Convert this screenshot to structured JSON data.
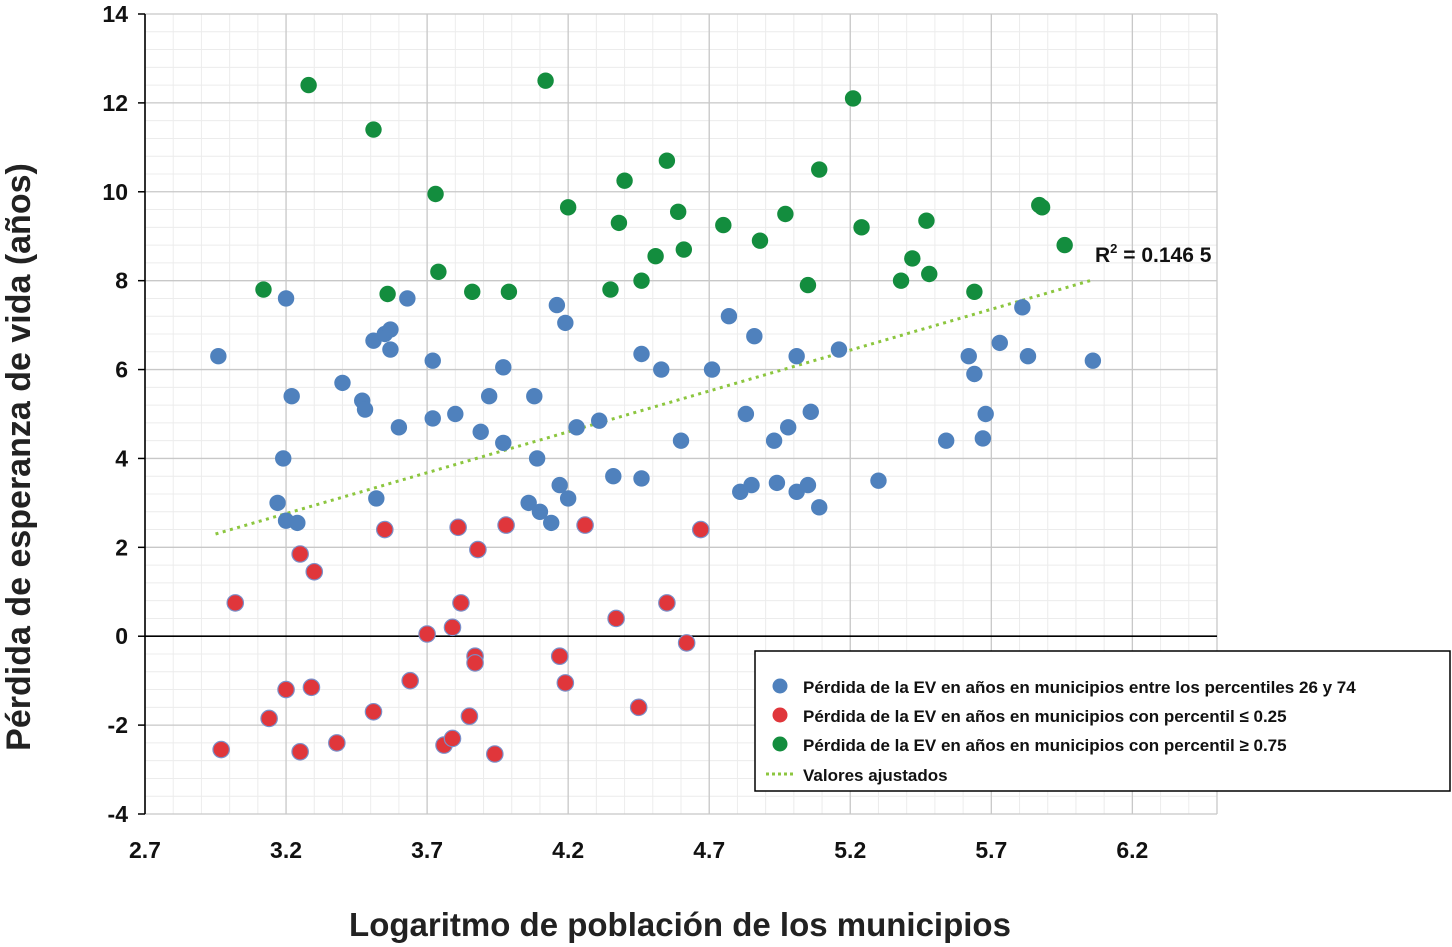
{
  "chart_data": {
    "type": "scatter",
    "title": "",
    "xlabel": "Logaritmo de población de los municipios",
    "ylabel": "Pérdida de esperanza de vida (años)",
    "xlim": [
      2.7,
      6.5
    ],
    "ylim": [
      -4,
      14
    ],
    "x_ticks": [
      "2.7",
      "3.2",
      "3.7",
      "4.2",
      "4.7",
      "5.2",
      "5.7",
      "6.2"
    ],
    "y_ticks": [
      "-4",
      "-2",
      "0",
      "2",
      "4",
      "6",
      "8",
      "10",
      "12",
      "14"
    ],
    "grid": true,
    "legend_position": "bottom-right",
    "r2_label": {
      "prefix": "R",
      "sup": "2",
      "suffix": " = 0.146 5"
    },
    "trendline": {
      "name": "Valores ajustados",
      "color": "#8cc63f",
      "x": [
        2.95,
        6.05
      ],
      "y": [
        2.3,
        8.0
      ]
    },
    "series": [
      {
        "name": "Pérdida de la EV en años en municipios entre los percentiles 26 y 74",
        "color": "#4f81bd",
        "points": [
          [
            2.96,
            6.3
          ],
          [
            3.17,
            3.0
          ],
          [
            3.19,
            4.0
          ],
          [
            3.2,
            7.6
          ],
          [
            3.22,
            5.4
          ],
          [
            3.2,
            2.6
          ],
          [
            3.24,
            2.55
          ],
          [
            3.4,
            5.7
          ],
          [
            3.47,
            5.3
          ],
          [
            3.48,
            5.1
          ],
          [
            3.51,
            6.65
          ],
          [
            3.55,
            6.8
          ],
          [
            3.57,
            6.9
          ],
          [
            3.57,
            6.45
          ],
          [
            3.52,
            3.1
          ],
          [
            3.6,
            4.7
          ],
          [
            3.63,
            7.6
          ],
          [
            3.72,
            6.2
          ],
          [
            3.72,
            4.9
          ],
          [
            3.8,
            5.0
          ],
          [
            3.89,
            4.6
          ],
          [
            3.92,
            5.4
          ],
          [
            3.97,
            6.05
          ],
          [
            3.97,
            4.35
          ],
          [
            4.06,
            3.0
          ],
          [
            4.08,
            5.4
          ],
          [
            4.1,
            2.8
          ],
          [
            4.09,
            4.0
          ],
          [
            4.14,
            2.55
          ],
          [
            4.17,
            3.4
          ],
          [
            4.16,
            7.45
          ],
          [
            4.19,
            7.05
          ],
          [
            4.2,
            3.1
          ],
          [
            4.23,
            4.7
          ],
          [
            4.31,
            4.85
          ],
          [
            4.36,
            3.6
          ],
          [
            4.46,
            6.35
          ],
          [
            4.46,
            3.55
          ],
          [
            4.53,
            6.0
          ],
          [
            4.6,
            4.4
          ],
          [
            4.71,
            6.0
          ],
          [
            4.77,
            7.2
          ],
          [
            4.81,
            3.25
          ],
          [
            4.83,
            5.0
          ],
          [
            4.85,
            3.4
          ],
          [
            4.86,
            6.75
          ],
          [
            4.93,
            4.4
          ],
          [
            4.94,
            3.45
          ],
          [
            4.98,
            4.7
          ],
          [
            5.01,
            6.3
          ],
          [
            5.01,
            3.25
          ],
          [
            5.05,
            3.4
          ],
          [
            5.06,
            5.05
          ],
          [
            5.09,
            2.9
          ],
          [
            5.16,
            6.45
          ],
          [
            5.3,
            3.5
          ],
          [
            5.54,
            4.4
          ],
          [
            5.62,
            6.3
          ],
          [
            5.64,
            5.9
          ],
          [
            5.67,
            4.45
          ],
          [
            5.68,
            5.0
          ],
          [
            5.73,
            6.6
          ],
          [
            5.81,
            7.4
          ],
          [
            5.83,
            6.3
          ],
          [
            6.06,
            6.2
          ]
        ]
      },
      {
        "name": "Pérdida de la EV en años en municipios con percentil ≤ 0.25",
        "color": "#e0363b",
        "points": [
          [
            2.97,
            -2.55
          ],
          [
            3.02,
            0.75
          ],
          [
            3.14,
            -1.85
          ],
          [
            3.2,
            -1.2
          ],
          [
            3.25,
            -2.6
          ],
          [
            3.25,
            1.85
          ],
          [
            3.29,
            -1.15
          ],
          [
            3.3,
            1.45
          ],
          [
            3.38,
            -2.4
          ],
          [
            3.51,
            -1.7
          ],
          [
            3.55,
            2.4
          ],
          [
            3.64,
            -1.0
          ],
          [
            3.7,
            0.05
          ],
          [
            3.76,
            -2.45
          ],
          [
            3.79,
            -2.3
          ],
          [
            3.79,
            0.2
          ],
          [
            3.82,
            0.75
          ],
          [
            3.81,
            2.45
          ],
          [
            3.85,
            -1.8
          ],
          [
            3.87,
            -0.45
          ],
          [
            3.87,
            -0.6
          ],
          [
            3.88,
            1.95
          ],
          [
            3.94,
            -2.65
          ],
          [
            3.98,
            2.5
          ],
          [
            4.17,
            -0.45
          ],
          [
            4.19,
            -1.05
          ],
          [
            4.26,
            2.5
          ],
          [
            4.37,
            0.4
          ],
          [
            4.45,
            -1.6
          ],
          [
            4.55,
            0.75
          ],
          [
            4.62,
            -0.15
          ],
          [
            4.67,
            2.4
          ]
        ]
      },
      {
        "name": "Pérdida de la EV en años en municipios con percentil ≥ 0.75",
        "color": "#138d3e",
        "points": [
          [
            3.12,
            7.8
          ],
          [
            3.28,
            12.4
          ],
          [
            3.51,
            11.4
          ],
          [
            3.56,
            7.7
          ],
          [
            3.73,
            9.95
          ],
          [
            3.74,
            8.2
          ],
          [
            3.86,
            7.75
          ],
          [
            3.99,
            7.75
          ],
          [
            4.12,
            12.5
          ],
          [
            4.2,
            9.65
          ],
          [
            4.35,
            7.8
          ],
          [
            4.38,
            9.3
          ],
          [
            4.4,
            10.25
          ],
          [
            4.46,
            8.0
          ],
          [
            4.51,
            8.55
          ],
          [
            4.55,
            10.7
          ],
          [
            4.59,
            9.55
          ],
          [
            4.61,
            8.7
          ],
          [
            4.75,
            9.25
          ],
          [
            4.88,
            8.9
          ],
          [
            4.97,
            9.5
          ],
          [
            5.05,
            7.9
          ],
          [
            5.09,
            10.5
          ],
          [
            5.21,
            12.1
          ],
          [
            5.24,
            9.2
          ],
          [
            5.38,
            8.0
          ],
          [
            5.42,
            8.5
          ],
          [
            5.47,
            9.35
          ],
          [
            5.48,
            8.15
          ],
          [
            5.64,
            7.75
          ],
          [
            5.87,
            9.7
          ],
          [
            5.88,
            9.65
          ],
          [
            5.96,
            8.8
          ]
        ]
      }
    ]
  }
}
